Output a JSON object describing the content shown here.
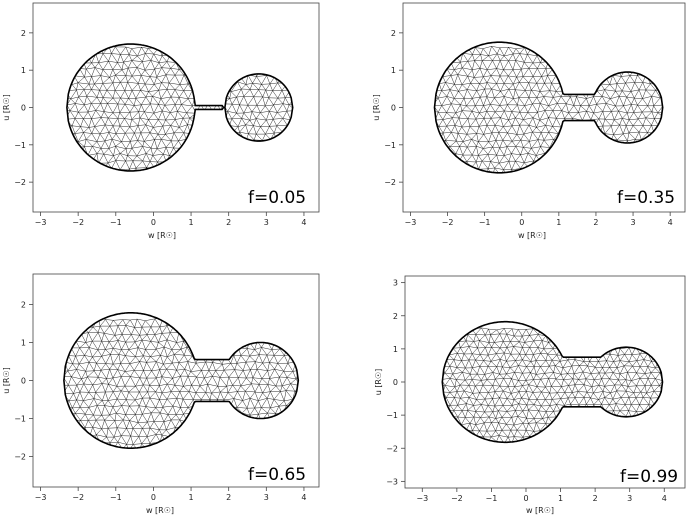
{
  "chart_data": [
    {
      "type": "scatter",
      "xlabel": "w [R☉]",
      "ylabel": "u [R☉]",
      "xlim": [
        -3.2,
        4.4
      ],
      "ylim": [
        -2.8,
        2.8
      ],
      "xticks": [
        -3,
        -2,
        -1,
        0,
        1,
        2,
        3,
        4
      ],
      "yticks": [
        -2,
        -1,
        0,
        1,
        2
      ],
      "annotation": "f=0.05",
      "grid": false,
      "bodies": {
        "primary_center": [
          -0.6,
          0
        ],
        "primary_radius": 1.7,
        "secondary_center": [
          2.8,
          0
        ],
        "secondary_radius": 0.9,
        "neck_x": 1.35,
        "neck_halfwidth": 0.05
      }
    },
    {
      "type": "scatter",
      "xlabel": "w [R☉]",
      "ylabel": "u [R☉]",
      "xlim": [
        -3.2,
        4.4
      ],
      "ylim": [
        -2.8,
        2.8
      ],
      "xticks": [
        -3,
        -2,
        -1,
        0,
        1,
        2,
        3,
        4
      ],
      "yticks": [
        -2,
        -1,
        0,
        1,
        2
      ],
      "annotation": "f=0.35",
      "grid": false,
      "bodies": {
        "primary_center": [
          -0.6,
          0
        ],
        "primary_radius": 1.75,
        "secondary_center": [
          2.85,
          0
        ],
        "secondary_radius": 0.95,
        "neck_x": 1.45,
        "neck_halfwidth": 0.35
      }
    },
    {
      "type": "scatter",
      "xlabel": "w [R☉]",
      "ylabel": "u [R☉]",
      "xlim": [
        -3.2,
        4.4
      ],
      "ylim": [
        -2.8,
        2.8
      ],
      "xticks": [
        -3,
        -2,
        -1,
        0,
        1,
        2,
        3,
        4
      ],
      "yticks": [
        -2,
        -1,
        0,
        1,
        2
      ],
      "annotation": "f=0.65",
      "grid": false,
      "bodies": {
        "primary_center": [
          -0.6,
          0
        ],
        "primary_radius": 1.78,
        "secondary_center": [
          2.85,
          0
        ],
        "secondary_radius": 1.0,
        "neck_x": 1.5,
        "neck_halfwidth": 0.55
      }
    },
    {
      "type": "scatter",
      "xlabel": "w [R☉]",
      "ylabel": "u [R☉]",
      "xlim": [
        -3.5,
        4.6
      ],
      "ylim": [
        -3.2,
        3.2
      ],
      "xticks": [
        -3,
        -2,
        -1,
        0,
        1,
        2,
        3,
        4
      ],
      "yticks": [
        -3,
        -2,
        -1,
        0,
        1,
        2,
        3
      ],
      "annotation": "f=0.99",
      "grid": false,
      "bodies": {
        "primary_center": [
          -0.6,
          0
        ],
        "primary_radius": 1.82,
        "secondary_center": [
          2.9,
          0
        ],
        "secondary_radius": 1.05,
        "neck_x": 1.55,
        "neck_halfwidth": 0.75
      }
    }
  ]
}
